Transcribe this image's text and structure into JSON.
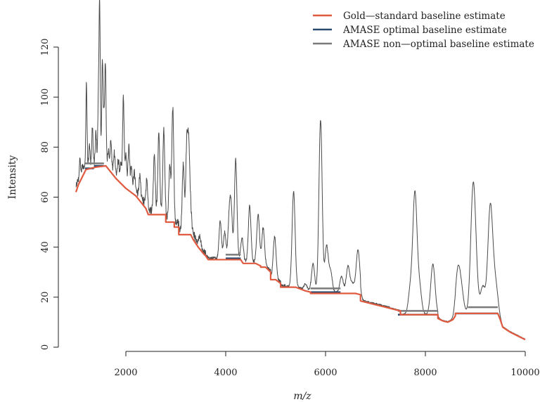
{
  "colors": {
    "gold_standard": "#e05a3f",
    "amase_optimal": "#2b4a6f",
    "amase_nonoptimal": "#7a7a7a",
    "spectrum": "#4a4a4a",
    "axis": "#222222"
  },
  "chart_data": {
    "type": "line",
    "xlabel": "m/z",
    "ylabel": "Intensity",
    "xlim": [
      1000,
      10000
    ],
    "ylim": [
      0,
      125
    ],
    "x_ticks": [
      2000,
      4000,
      6000,
      8000,
      10000
    ],
    "y_ticks": [
      0,
      20,
      40,
      60,
      80,
      100,
      120
    ],
    "legend": {
      "placement": "top-right",
      "entries": [
        {
          "label": "Gold—standard baseline estimate",
          "color": "#e05a3f"
        },
        {
          "label": "AMASE optimal baseline estimate",
          "color": "#2b4a6f"
        },
        {
          "label": "AMASE non—optimal baseline estimate",
          "color": "#7a7a7a"
        }
      ]
    },
    "series": [
      {
        "name": "Gold—standard baseline estimate",
        "role": "gold",
        "x": [
          1000,
          1050,
          1100,
          1150,
          1200,
          1400,
          1600,
          1700,
          1800,
          1900,
          2000,
          2100,
          2200,
          2300,
          2400,
          2450,
          2800,
          2800,
          2970,
          2970,
          3060,
          3060,
          3300,
          3350,
          3450,
          3550,
          3600,
          3650,
          4300,
          4350,
          4600,
          4700,
          4700,
          4800,
          4900,
          4900,
          5000,
          5100,
          5100,
          5400,
          5600,
          5700,
          5700,
          6600,
          6700,
          6700,
          7000,
          7200,
          7400,
          7500,
          7500,
          8250,
          8250,
          8350,
          8450,
          8550,
          8600,
          8600,
          9450,
          9500,
          9550,
          9700,
          9850,
          10000
        ],
        "y": [
          62,
          65,
          67,
          69,
          71,
          72,
          72.5,
          70,
          67.5,
          65.5,
          63.5,
          62,
          60.5,
          58,
          55.5,
          53,
          53,
          50,
          50,
          48,
          48,
          45,
          45,
          43,
          40,
          37.5,
          36.5,
          35,
          35,
          33.5,
          33.5,
          32.5,
          32,
          32,
          30,
          27,
          27,
          25.5,
          24,
          24,
          22.5,
          22,
          21.5,
          21.5,
          21,
          18.5,
          17,
          16,
          15,
          14.5,
          13,
          13,
          11.5,
          10.5,
          10,
          11,
          12.5,
          13.5,
          13.5,
          11,
          8,
          6,
          4.5,
          3
        ]
      },
      {
        "name": "AMASE optimal baseline estimate",
        "role": "optimal",
        "x": [
          1180,
          1360,
          1360,
          1560,
          4000,
          4300,
          5700,
          6300,
          7450,
          8250,
          8600,
          9450
        ],
        "y": [
          71.5,
          71.5,
          72.5,
          72.5,
          35.5,
          35.5,
          22,
          22,
          13,
          13,
          13.5,
          13.5
        ]
      },
      {
        "name": "AMASE non—optimal baseline estimate",
        "role": "nonoptimal",
        "x": [
          1180,
          1560,
          4000,
          4300,
          5700,
          6300,
          7450,
          8250,
          8850,
          9450
        ],
        "y": [
          73.5,
          73.5,
          37,
          37,
          23.5,
          23.5,
          14.5,
          14.5,
          16,
          16
        ]
      }
    ],
    "peaks": [
      [
        1080,
        73.5
      ],
      [
        1130,
        71
      ],
      [
        1210,
        103.5
      ],
      [
        1270,
        79
      ],
      [
        1330,
        86
      ],
      [
        1400,
        84
      ],
      [
        1450,
        95.5
      ],
      [
        1475,
        133
      ],
      [
        1530,
        112
      ],
      [
        1560,
        88
      ],
      [
        1590,
        110.5
      ],
      [
        1650,
        77
      ],
      [
        1700,
        80.5
      ],
      [
        1770,
        76
      ],
      [
        1850,
        73
      ],
      [
        1900,
        71
      ],
      [
        1950,
        98
      ],
      [
        2000,
        75
      ],
      [
        2060,
        79
      ],
      [
        2110,
        70
      ],
      [
        2170,
        68
      ],
      [
        2280,
        66
      ],
      [
        2420,
        65
      ],
      [
        2570,
        75.5
      ],
      [
        2660,
        84
      ],
      [
        2760,
        84.5
      ],
      [
        2880,
        70
      ],
      [
        2940,
        93.5
      ],
      [
        3150,
        71
      ],
      [
        3220,
        77.5
      ],
      [
        3260,
        76.5
      ],
      [
        3300,
        52
      ],
      [
        3480,
        43
      ],
      [
        3890,
        50
      ],
      [
        3980,
        45.5
      ],
      [
        4070,
        50.5
      ],
      [
        4110,
        54
      ],
      [
        4200,
        74.5
      ],
      [
        4330,
        43
      ],
      [
        4480,
        56
      ],
      [
        4650,
        52.5
      ],
      [
        4750,
        47
      ],
      [
        4980,
        43.5
      ],
      [
        5360,
        62
      ],
      [
        5600,
        25
      ],
      [
        5750,
        33
      ],
      [
        5900,
        90.5
      ],
      [
        6020,
        40
      ],
      [
        6100,
        30
      ],
      [
        6320,
        28
      ],
      [
        6450,
        32
      ],
      [
        6540,
        25
      ],
      [
        6650,
        38.5
      ],
      [
        7700,
        23
      ],
      [
        7790,
        60.5
      ],
      [
        7880,
        24
      ],
      [
        8150,
        33
      ],
      [
        8650,
        29.5
      ],
      [
        8720,
        22
      ],
      [
        8950,
        55.5
      ],
      [
        9000,
        30
      ],
      [
        9150,
        24
      ],
      [
        9300,
        56
      ],
      [
        9400,
        25
      ]
    ]
  }
}
